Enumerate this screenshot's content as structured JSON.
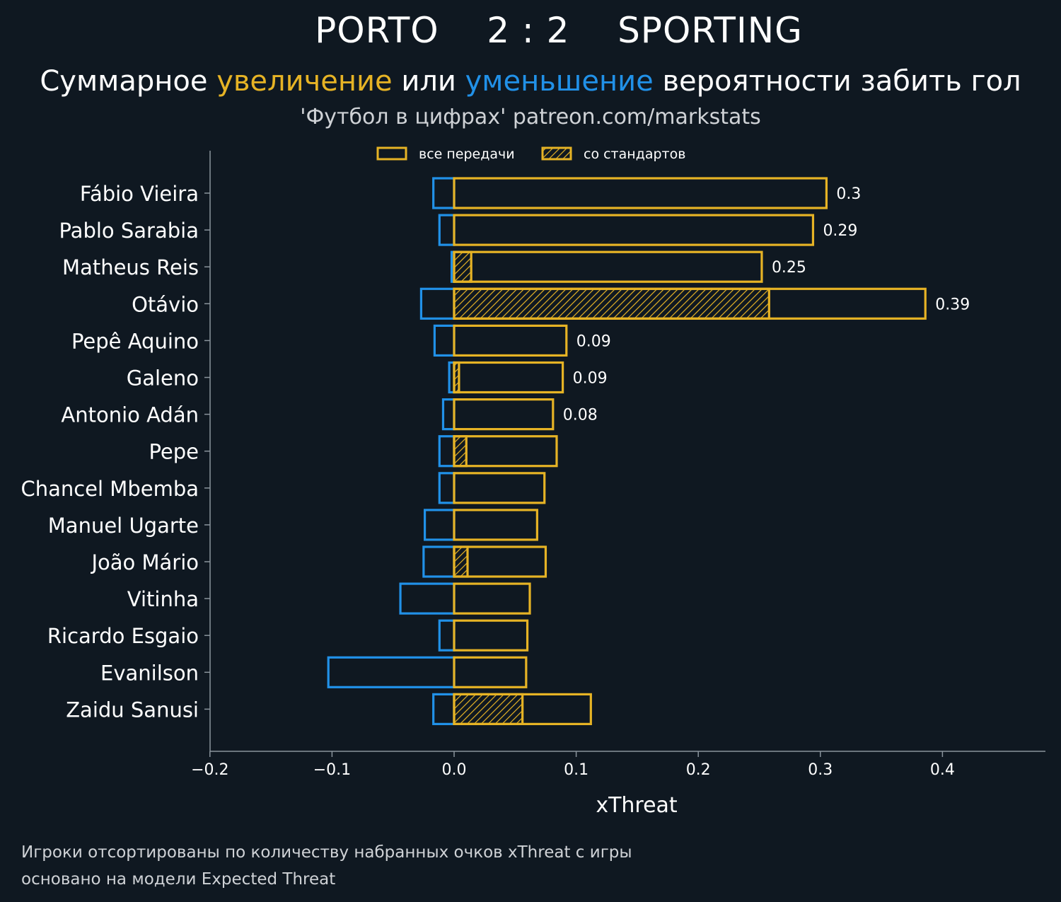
{
  "header": {
    "home_team": "PORTO",
    "score": "2 : 2",
    "away_team": "SPORTING",
    "subtitle_part1": "Суммарное ",
    "subtitle_increase": "увеличение",
    "subtitle_part2": " или ",
    "subtitle_decrease": "уменьшение",
    "subtitle_part3": " вероятности забить гол",
    "source": "'Футбол в цифрах' patreon.com/markstats"
  },
  "footnote": {
    "line1": "Игроки отсортированы по количеству набранных очков xThreat с игры",
    "line2": "основано на модели Expected Threat"
  },
  "colors": {
    "background": "#0f1821",
    "increase": "#e6b325",
    "decrease": "#2191e8",
    "axis": "#8a949c",
    "text": "#ffffff",
    "muted": "#cfd2d6"
  },
  "chart_data": {
    "type": "bar",
    "orientation": "horizontal",
    "xlabel": "xThreat",
    "ylabel": "",
    "xlim": [
      -0.2,
      0.48
    ],
    "xticks": [
      -0.2,
      -0.1,
      0.0,
      0.1,
      0.2,
      0.3,
      0.4
    ],
    "xtick_labels": [
      "−0.2",
      "−0.1",
      "0.0",
      "0.1",
      "0.2",
      "0.3",
      "0.4"
    ],
    "legend": {
      "position": "top-center",
      "items": [
        {
          "label": "все передачи",
          "style": "outline"
        },
        {
          "label": "со стандартов",
          "style": "hatched"
        }
      ]
    },
    "categories": [
      "Fábio Vieira",
      "Pablo Sarabia",
      "Matheus Reis",
      "Otávio",
      "Pepê Aquino",
      "Galeno",
      "Antonio Adán",
      "Pepe",
      "Chancel Mbemba",
      "Manuel Ugarte",
      "João Mário",
      "Vitinha",
      "Ricardo Esgaio",
      "Evanilson",
      "Zaidu Sanusi"
    ],
    "series": [
      {
        "name": "все передачи (положительные)",
        "values": [
          0.305,
          0.294,
          0.252,
          0.386,
          0.092,
          0.089,
          0.081,
          0.084,
          0.074,
          0.068,
          0.075,
          0.062,
          0.06,
          0.059,
          0.112
        ]
      },
      {
        "name": "все передачи (отрицательные)",
        "values": [
          -0.017,
          -0.012,
          -0.002,
          -0.027,
          -0.016,
          -0.004,
          -0.009,
          -0.012,
          -0.012,
          -0.024,
          -0.025,
          -0.044,
          -0.012,
          -0.103,
          -0.017
        ]
      },
      {
        "name": "со стандартов",
        "values": [
          0,
          0,
          0.014,
          0.258,
          0,
          0.004,
          0,
          0.01,
          0,
          0,
          0.011,
          0,
          0,
          0,
          0.056
        ]
      }
    ],
    "value_labels": [
      "0.3",
      "0.29",
      "0.25",
      "0.39",
      "0.09",
      "0.09",
      "0.08",
      "",
      "",
      "",
      "",
      "",
      "",
      "",
      ""
    ]
  }
}
